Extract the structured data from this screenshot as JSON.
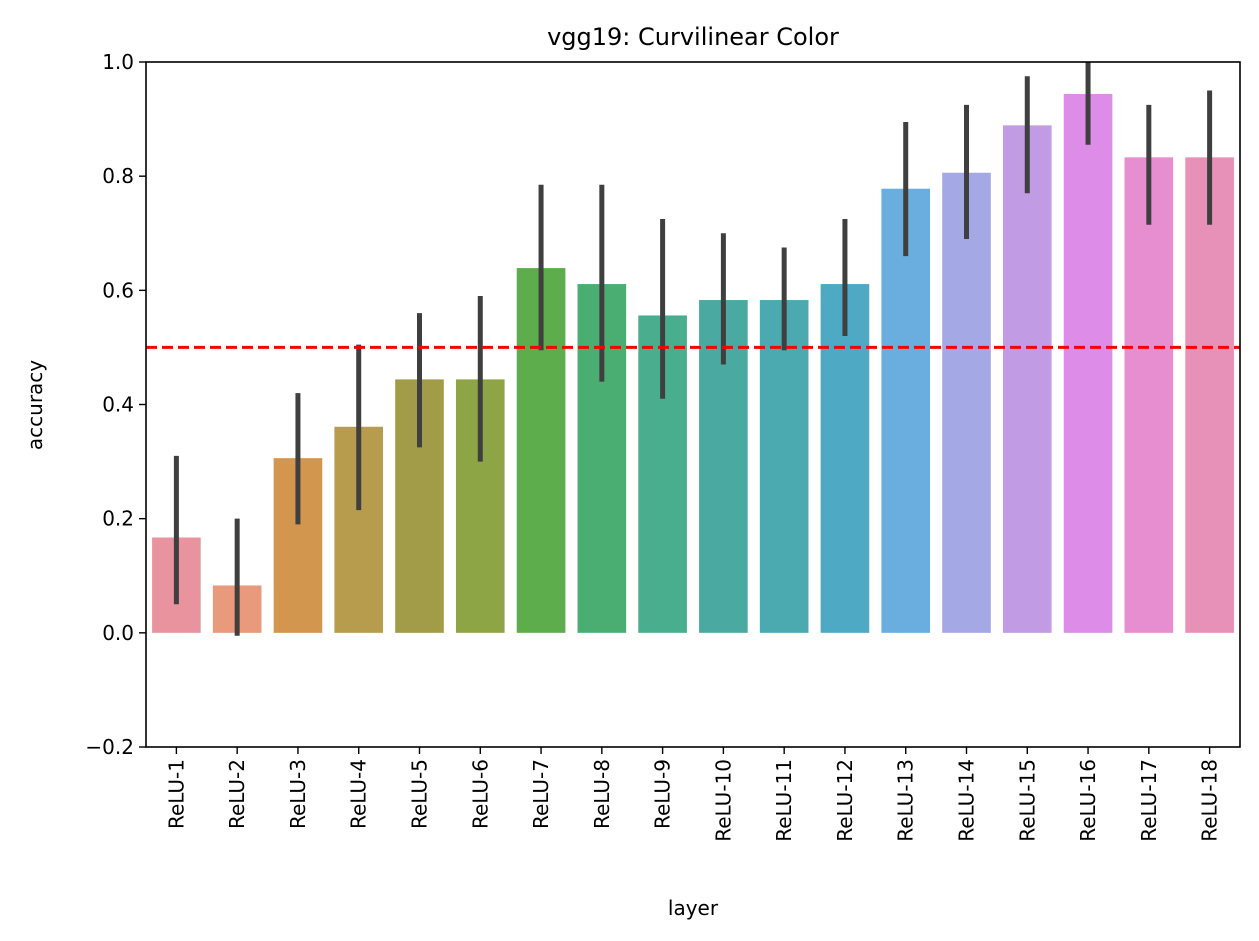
{
  "chart_data": {
    "type": "bar",
    "title": "vgg19: Curvilinear Color",
    "xlabel": "layer",
    "ylabel": "accuracy",
    "ylim": [
      -0.2,
      1.0
    ],
    "yticks": [
      "−0.2",
      "0.0",
      "0.2",
      "0.4",
      "0.6",
      "0.8",
      "1.0"
    ],
    "ytick_values": [
      -0.2,
      0.0,
      0.2,
      0.4,
      0.6,
      0.8,
      1.0
    ],
    "grid": false,
    "legend": "none",
    "categories": [
      "ReLU-1",
      "ReLU-2",
      "ReLU-3",
      "ReLU-4",
      "ReLU-5",
      "ReLU-6",
      "ReLU-7",
      "ReLU-8",
      "ReLU-9",
      "ReLU-10",
      "ReLU-11",
      "ReLU-12",
      "ReLU-13",
      "ReLU-14",
      "ReLU-15",
      "ReLU-16",
      "ReLU-17",
      "ReLU-18"
    ],
    "values": [
      0.167,
      0.083,
      0.306,
      0.361,
      0.444,
      0.444,
      0.639,
      0.611,
      0.556,
      0.583,
      0.583,
      0.611,
      0.778,
      0.806,
      0.889,
      0.944,
      0.833,
      0.833
    ],
    "error_low": [
      0.05,
      -0.005,
      0.19,
      0.215,
      0.325,
      0.3,
      0.495,
      0.44,
      0.41,
      0.47,
      0.495,
      0.52,
      0.66,
      0.69,
      0.77,
      0.855,
      0.715,
      0.715
    ],
    "error_high": [
      0.31,
      0.2,
      0.42,
      0.505,
      0.56,
      0.59,
      0.785,
      0.785,
      0.725,
      0.7,
      0.675,
      0.725,
      0.895,
      0.925,
      0.975,
      1.0,
      0.925,
      0.95
    ],
    "bar_colors": [
      "#e8939d",
      "#e99a7c",
      "#d3964e",
      "#b69c4c",
      "#a29c48",
      "#8ea546",
      "#5dad4c",
      "#4aae73",
      "#49ae8e",
      "#4aaaa1",
      "#4baab0",
      "#4ea9c5",
      "#6aaee0",
      "#a4a9e6",
      "#c19ce5",
      "#dd8ce8",
      "#e78ed0",
      "#e891b8"
    ],
    "reference_line": {
      "y": 0.5,
      "color": "#ff0000",
      "style": "dashed"
    },
    "errorbar_color": "#3f3f3f"
  }
}
